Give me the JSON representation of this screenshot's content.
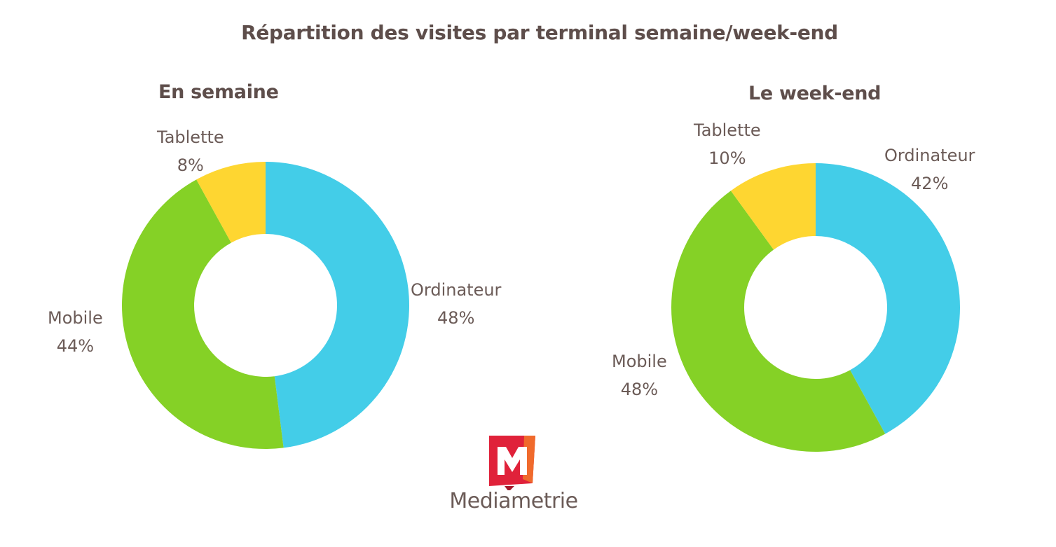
{
  "title": "Répartition des visites par terminal semaine/week-end",
  "chart_data": [
    {
      "type": "pie",
      "title": "En semaine",
      "categories": [
        "Ordinateur",
        "Mobile",
        "Tablette"
      ],
      "values": [
        48,
        44,
        8
      ],
      "labels": [
        "48%",
        "44%",
        "8%"
      ],
      "colors": [
        "#43cde8",
        "#85d126",
        "#fed631"
      ]
    },
    {
      "type": "pie",
      "title": "Le week-end",
      "categories": [
        "Ordinateur",
        "Mobile",
        "Tablette"
      ],
      "values": [
        42,
        48,
        10
      ],
      "labels": [
        "42%",
        "48%",
        "10%"
      ],
      "colors": [
        "#43cde8",
        "#85d126",
        "#fed631"
      ]
    }
  ],
  "logo": {
    "text": "Mediametrie",
    "icon": "mediametrie-m-icon",
    "color": "#e0223a"
  }
}
